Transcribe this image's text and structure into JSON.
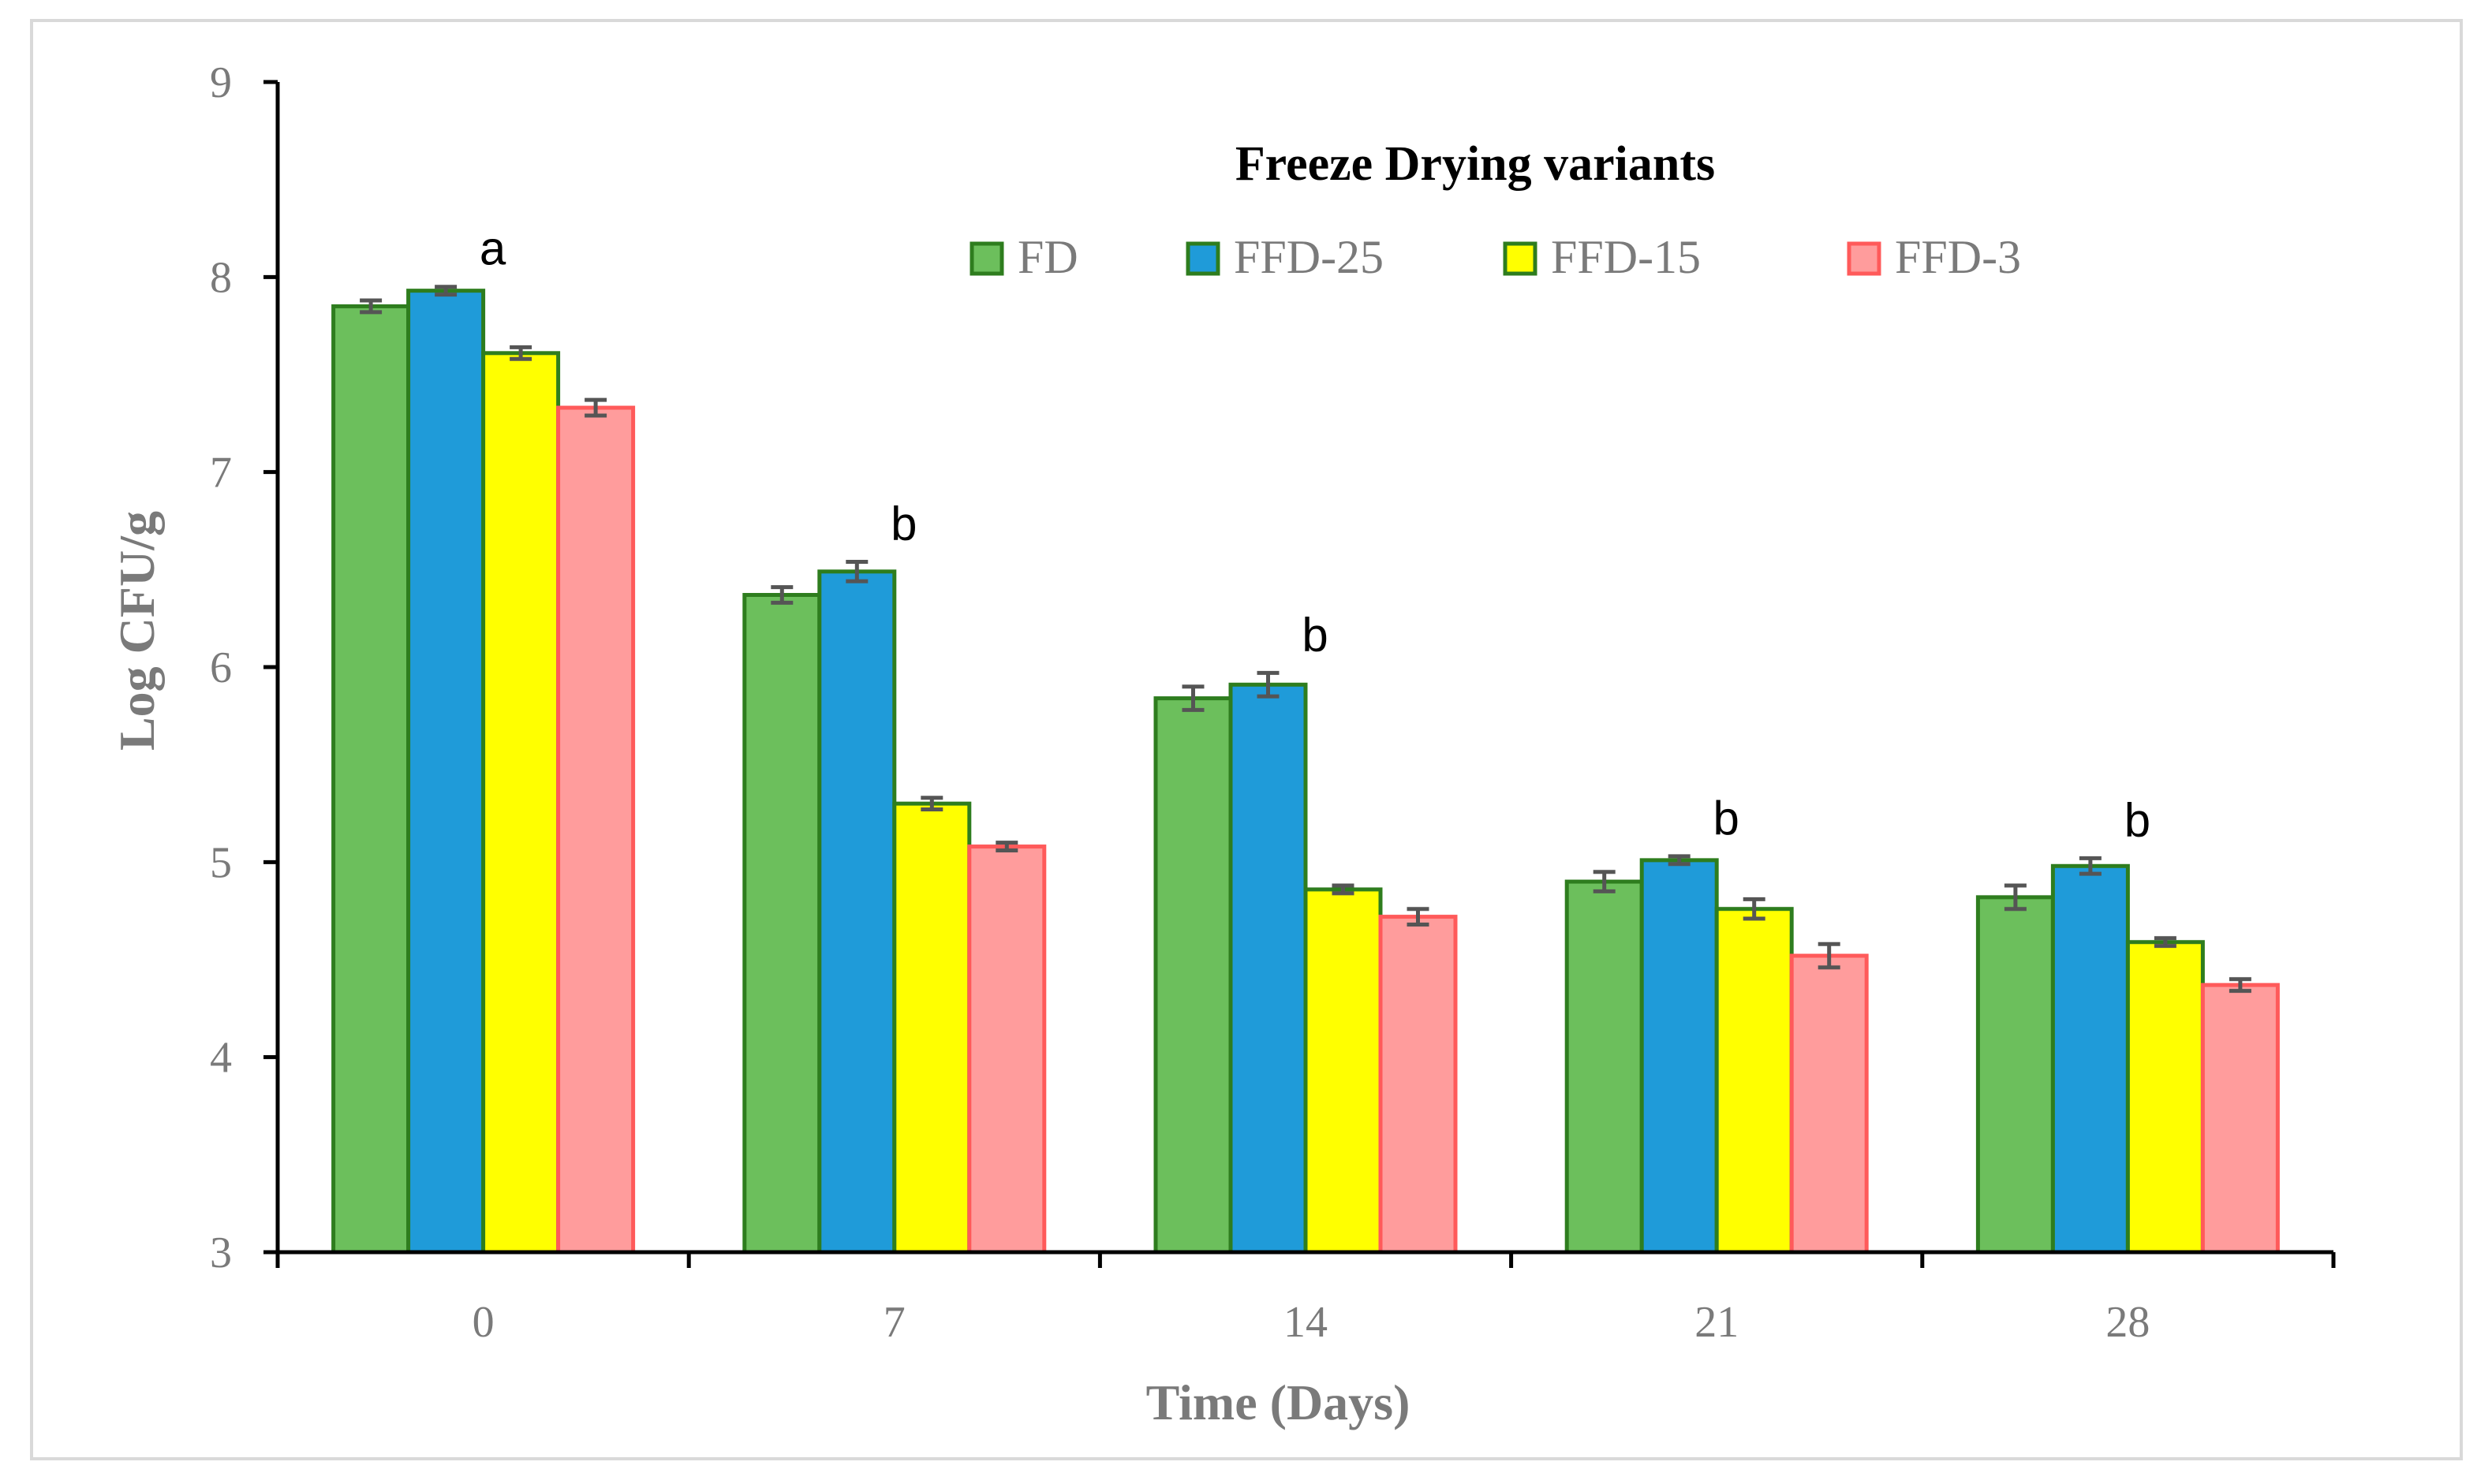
{
  "chart_data": {
    "type": "bar",
    "title": "",
    "xlabel": "Time (Days)",
    "ylabel": "Log CFU/g",
    "categories": [
      "0",
      "7",
      "14",
      "21",
      "28"
    ],
    "ylim": [
      3,
      9
    ],
    "yticks": [
      "3",
      "4",
      "5",
      "6",
      "7",
      "8",
      "9"
    ],
    "grid": false,
    "legend": {
      "title": "Freeze Drying variants",
      "placement": "top-center"
    },
    "series": [
      {
        "name": "FD",
        "fill": "#6cbf5c",
        "stroke": "#2e7d1e",
        "values": [
          7.85,
          6.37,
          5.84,
          4.9,
          4.82
        ],
        "errors": [
          0.03,
          0.04,
          0.06,
          0.05,
          0.06
        ]
      },
      {
        "name": "FFD-25",
        "fill": "#1f9bd9",
        "stroke": "#2e7d1e",
        "values": [
          7.93,
          6.49,
          5.91,
          5.01,
          4.98
        ],
        "errors": [
          0.02,
          0.05,
          0.06,
          0.02,
          0.04
        ]
      },
      {
        "name": "FFD-15",
        "fill": "#ffff00",
        "stroke": "#2e7d1e",
        "values": [
          7.61,
          5.3,
          4.86,
          4.76,
          4.59
        ],
        "errors": [
          0.03,
          0.03,
          0.02,
          0.05,
          0.02
        ]
      },
      {
        "name": "FFD-3",
        "fill": "#ff9c9c",
        "stroke": "#ff5a5a",
        "values": [
          7.33,
          5.08,
          4.72,
          4.52,
          4.37
        ],
        "errors": [
          0.04,
          0.02,
          0.04,
          0.06,
          0.03
        ]
      }
    ],
    "annotations": [
      {
        "category": "0",
        "text": "a"
      },
      {
        "category": "7",
        "text": "b"
      },
      {
        "category": "14",
        "text": "b"
      },
      {
        "category": "21",
        "text": "b"
      },
      {
        "category": "28",
        "text": "b"
      }
    ],
    "colors": {
      "axis": "#000000",
      "errorbar": "#555555",
      "frame": "#d9d9d9"
    }
  }
}
